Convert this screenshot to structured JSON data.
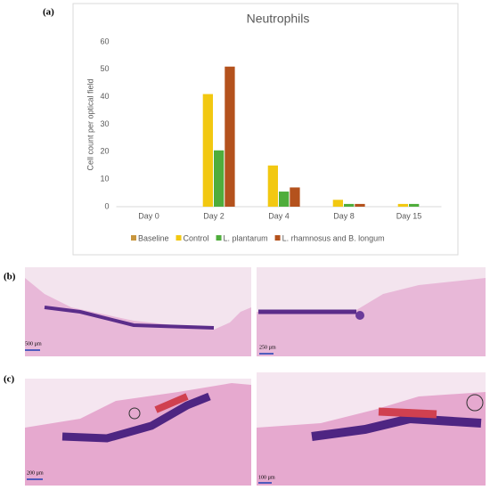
{
  "panel_labels": [
    "(a)",
    "(b)",
    "(c)"
  ],
  "scale_bars": [
    "500 µm",
    "250 µm",
    "200 µm",
    "100 µm"
  ],
  "chart_data": {
    "type": "bar",
    "title": "Neutrophils",
    "y_label": "Cell count per optical field",
    "categories": [
      "Day 0",
      "Day 2",
      "Day 4",
      "Day 8",
      "Day 15"
    ],
    "series": [
      {
        "name": "Baseline",
        "color": "#c8963e",
        "values": [
          0,
          null,
          null,
          null,
          null
        ]
      },
      {
        "name": "Control",
        "color": "#f2c811",
        "values": [
          null,
          41,
          15,
          2.5,
          1
        ]
      },
      {
        "name": "L. plantarum",
        "color": "#4fad3b",
        "values": [
          null,
          20.5,
          5.5,
          1,
          1
        ]
      },
      {
        "name": "L. rhamnosus and B. longum",
        "color": "#b4521d",
        "values": [
          null,
          51,
          7,
          1,
          null
        ]
      }
    ],
    "ylim": [
      0,
      60
    ],
    "yticks": [
      0,
      10,
      20,
      30,
      40,
      50,
      60
    ],
    "grid": false,
    "legend": "bottom"
  }
}
